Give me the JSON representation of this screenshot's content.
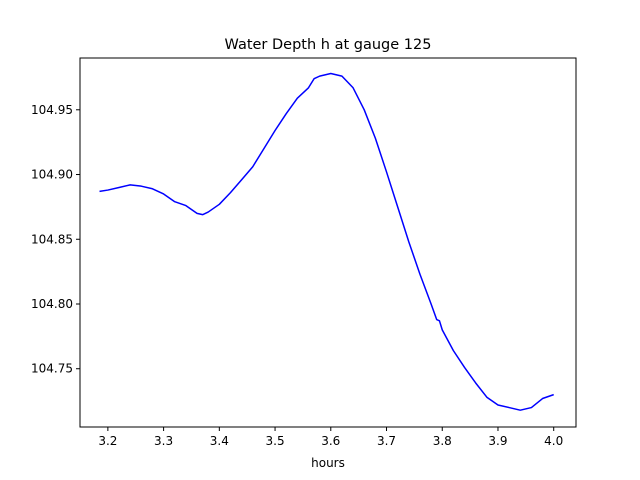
{
  "chart_data": {
    "type": "line",
    "title": "Water Depth h at gauge 125",
    "xlabel": "hours",
    "ylabel": "",
    "xlim": [
      3.15,
      4.04
    ],
    "ylim": [
      104.705,
      104.99
    ],
    "grid": false,
    "xticks": [
      3.2,
      3.3,
      3.4,
      3.5,
      3.6,
      3.7,
      3.8,
      3.9,
      4.0
    ],
    "xtick_labels": [
      "3.2",
      "3.3",
      "3.4",
      "3.5",
      "3.6",
      "3.7",
      "3.8",
      "3.9",
      "4.0"
    ],
    "yticks": [
      104.75,
      104.8,
      104.85,
      104.9,
      104.95
    ],
    "ytick_labels": [
      "104.75",
      "104.80",
      "104.85",
      "104.90",
      "104.95"
    ],
    "series": [
      {
        "color": "#0000ff",
        "x": [
          3.185,
          3.2,
          3.22,
          3.24,
          3.26,
          3.28,
          3.3,
          3.32,
          3.34,
          3.36,
          3.37,
          3.38,
          3.4,
          3.42,
          3.44,
          3.46,
          3.48,
          3.5,
          3.52,
          3.54,
          3.56,
          3.57,
          3.58,
          3.6,
          3.62,
          3.64,
          3.66,
          3.68,
          3.7,
          3.72,
          3.74,
          3.76,
          3.78,
          3.79,
          3.795,
          3.8,
          3.82,
          3.84,
          3.86,
          3.88,
          3.9,
          3.92,
          3.94,
          3.96,
          3.98,
          4.0
        ],
        "y": [
          104.887,
          104.888,
          104.89,
          104.892,
          104.891,
          104.889,
          104.885,
          104.879,
          104.876,
          104.87,
          104.869,
          104.871,
          104.877,
          104.886,
          104.896,
          104.906,
          104.92,
          104.934,
          104.947,
          104.959,
          104.967,
          104.974,
          104.976,
          104.978,
          104.976,
          104.967,
          104.95,
          104.928,
          104.902,
          104.875,
          104.848,
          104.823,
          104.8,
          104.788,
          104.787,
          104.78,
          104.764,
          104.751,
          104.739,
          104.728,
          104.722,
          104.72,
          104.718,
          104.72,
          104.727,
          104.73
        ]
      }
    ]
  }
}
